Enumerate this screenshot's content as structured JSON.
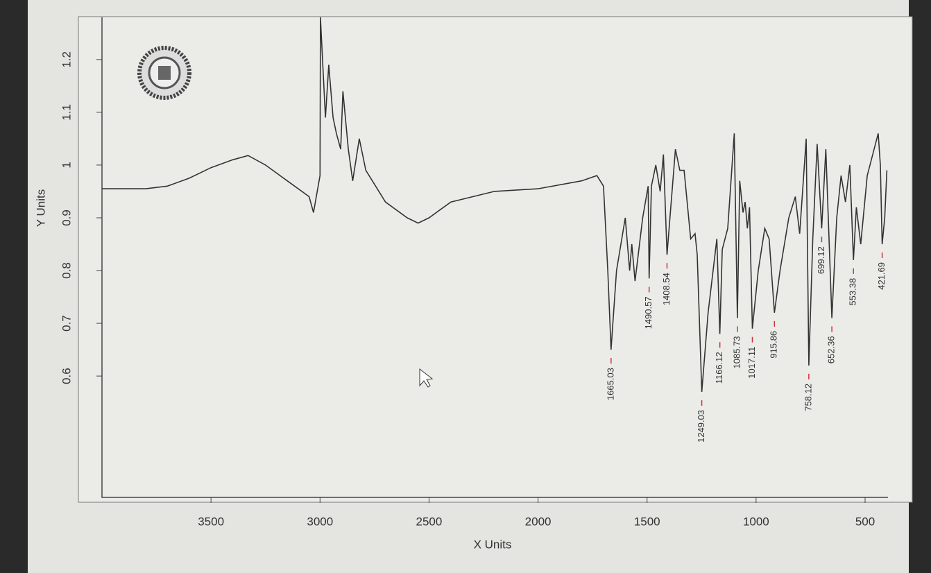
{
  "chart_data": {
    "type": "line",
    "xlabel": "X Units",
    "ylabel": "Y Units",
    "xlim": [
      4000,
      395
    ],
    "ylim": [
      0.37,
      1.28
    ],
    "xticks": [
      3500,
      3000,
      2500,
      2000,
      1500,
      1000,
      500
    ],
    "yticks": [
      0.6,
      0.7,
      0.8,
      0.9,
      1.0,
      1.1,
      1.2
    ],
    "series": [
      {
        "name": null,
        "color": "#333333",
        "x": [
          4000,
          3800,
          3700,
          3600,
          3500,
          3400,
          3330,
          3250,
          3150,
          3050,
          3030,
          3000,
          2998,
          2975,
          2960,
          2940,
          2925,
          2905,
          2895,
          2870,
          2850,
          2820,
          2790,
          2700,
          2600,
          2550,
          2500,
          2400,
          2200,
          2000,
          1800,
          1730,
          1700,
          1680,
          1665.03,
          1640,
          1600,
          1580,
          1570,
          1555,
          1520,
          1495,
          1490.57,
          1480,
          1460,
          1440,
          1425,
          1408.54,
          1395,
          1370,
          1350,
          1330,
          1300,
          1280,
          1270,
          1249.03,
          1220,
          1180,
          1166.12,
          1155,
          1130,
          1100,
          1085.73,
          1075,
          1060,
          1050,
          1040,
          1030,
          1017.11,
          990,
          960,
          940,
          915.86,
          890,
          850,
          820,
          800,
          770,
          758.12,
          740,
          720,
          699.12,
          680,
          652.36,
          630,
          610,
          590,
          570,
          553.38,
          540,
          520,
          490,
          440,
          430,
          421.69,
          410,
          400
        ],
        "values": [
          0.955,
          0.955,
          0.96,
          0.975,
          0.995,
          1.01,
          1.018,
          1.0,
          0.97,
          0.94,
          0.91,
          0.98,
          1.28,
          1.09,
          1.19,
          1.09,
          1.06,
          1.03,
          1.14,
          1.03,
          0.97,
          1.05,
          0.99,
          0.93,
          0.9,
          0.89,
          0.9,
          0.93,
          0.95,
          0.955,
          0.97,
          0.98,
          0.96,
          0.8,
          0.65,
          0.8,
          0.9,
          0.8,
          0.85,
          0.78,
          0.9,
          0.96,
          0.785,
          0.96,
          1.0,
          0.95,
          1.02,
          0.83,
          0.9,
          1.03,
          0.99,
          0.99,
          0.86,
          0.87,
          0.83,
          0.57,
          0.72,
          0.86,
          0.68,
          0.84,
          0.88,
          1.06,
          0.71,
          0.97,
          0.91,
          0.93,
          0.88,
          0.92,
          0.69,
          0.8,
          0.88,
          0.86,
          0.72,
          0.8,
          0.9,
          0.94,
          0.87,
          1.05,
          0.62,
          0.86,
          1.04,
          0.88,
          1.03,
          0.71,
          0.9,
          0.98,
          0.93,
          1.0,
          0.82,
          0.92,
          0.85,
          0.98,
          1.06,
          1.0,
          0.85,
          0.9,
          0.99
        ]
      }
    ],
    "peaks": [
      1665.03,
      1490.57,
      1408.54,
      1249.03,
      1166.12,
      1085.73,
      1017.11,
      915.86,
      758.12,
      699.12,
      652.36,
      553.38,
      421.69
    ]
  }
}
